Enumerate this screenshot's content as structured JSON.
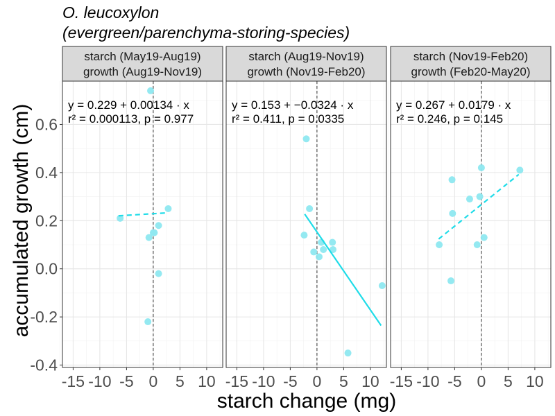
{
  "chart_data": {
    "type": "scatter",
    "title": "O. leucoxylon",
    "subtitle": "(evergreen/parenchyma-storing-species)",
    "xlabel": "starch change (mg)",
    "ylabel": "accumulated growth (cm)",
    "xlim": [
      -17,
      13
    ],
    "ylim": [
      -0.41,
      0.78
    ],
    "x_ticks": [
      -15,
      -10,
      -5,
      0,
      5,
      10
    ],
    "y_ticks": [
      -0.4,
      -0.2,
      0.0,
      0.2,
      0.4,
      0.6
    ],
    "x_tick_labels": [
      "-15",
      "-10",
      "-5",
      "0",
      "5",
      "10"
    ],
    "y_tick_labels": [
      "-0.4",
      "-0.2",
      "0.0",
      "0.2",
      "0.4",
      "0.6"
    ],
    "grid": true,
    "point_color": "#8ee8f0",
    "line_color": "#1fdce8",
    "panel_border_color": "#333333",
    "strip_fill": "#d9d9d9",
    "panels": [
      {
        "strip_line1": "starch (May19-Aug19)",
        "strip_line2": "growth (Aug19-Nov19)",
        "eq_line1": "y = 0.229 + 0.00134 · x",
        "eq_line2": "r² = 0.000113,  p = 0.977",
        "intercept": 0.229,
        "slope": 0.00134,
        "line_style": "dashed",
        "fit_x_range": [
          -6.5,
          2.8
        ],
        "points": [
          {
            "x": -0.5,
            "y": 0.74
          },
          {
            "x": -6.2,
            "y": 0.21
          },
          {
            "x": 2.8,
            "y": 0.25
          },
          {
            "x": 1.0,
            "y": 0.18
          },
          {
            "x": 0.2,
            "y": 0.15
          },
          {
            "x": 0.0,
            "y": 0.15
          },
          {
            "x": -0.8,
            "y": 0.13
          },
          {
            "x": 1.0,
            "y": -0.02
          },
          {
            "x": -1.0,
            "y": -0.22
          }
        ]
      },
      {
        "strip_line1": "starch (Aug19-Nov19)",
        "strip_line2": "growth (Nov19-Feb20)",
        "eq_line1": "y = 0.153 + −0.0324 · x",
        "eq_line2": "r² = 0.411,  p = 0.0335",
        "intercept": 0.153,
        "slope": -0.0324,
        "line_style": "solid",
        "fit_x_range": [
          -2.3,
          12.0
        ],
        "points": [
          {
            "x": -2.0,
            "y": 0.54
          },
          {
            "x": -1.4,
            "y": 0.25
          },
          {
            "x": -2.4,
            "y": 0.14
          },
          {
            "x": 0.8,
            "y": 0.11
          },
          {
            "x": 2.9,
            "y": 0.11
          },
          {
            "x": 1.2,
            "y": 0.08
          },
          {
            "x": 3.0,
            "y": 0.08
          },
          {
            "x": -0.6,
            "y": 0.07
          },
          {
            "x": 0.4,
            "y": 0.05
          },
          {
            "x": 12.2,
            "y": -0.07
          },
          {
            "x": 5.8,
            "y": -0.35
          }
        ]
      },
      {
        "strip_line1": "starch (Nov19-Feb20)",
        "strip_line2": "growth (Feb20-May20)",
        "eq_line1": "y = 0.267 + 0.0179 · x",
        "eq_line2": "r² = 0.246,  p = 0.145",
        "intercept": 0.267,
        "slope": 0.0179,
        "line_style": "dashed",
        "fit_x_range": [
          -8.0,
          7.0
        ],
        "points": [
          {
            "x": 0.0,
            "y": 0.42
          },
          {
            "x": 7.2,
            "y": 0.41
          },
          {
            "x": -5.5,
            "y": 0.37
          },
          {
            "x": -0.3,
            "y": 0.3
          },
          {
            "x": -2.2,
            "y": 0.29
          },
          {
            "x": -5.4,
            "y": 0.23
          },
          {
            "x": 0.5,
            "y": 0.13
          },
          {
            "x": -7.9,
            "y": 0.1
          },
          {
            "x": -0.8,
            "y": 0.1
          },
          {
            "x": -5.7,
            "y": -0.05
          }
        ]
      }
    ]
  }
}
